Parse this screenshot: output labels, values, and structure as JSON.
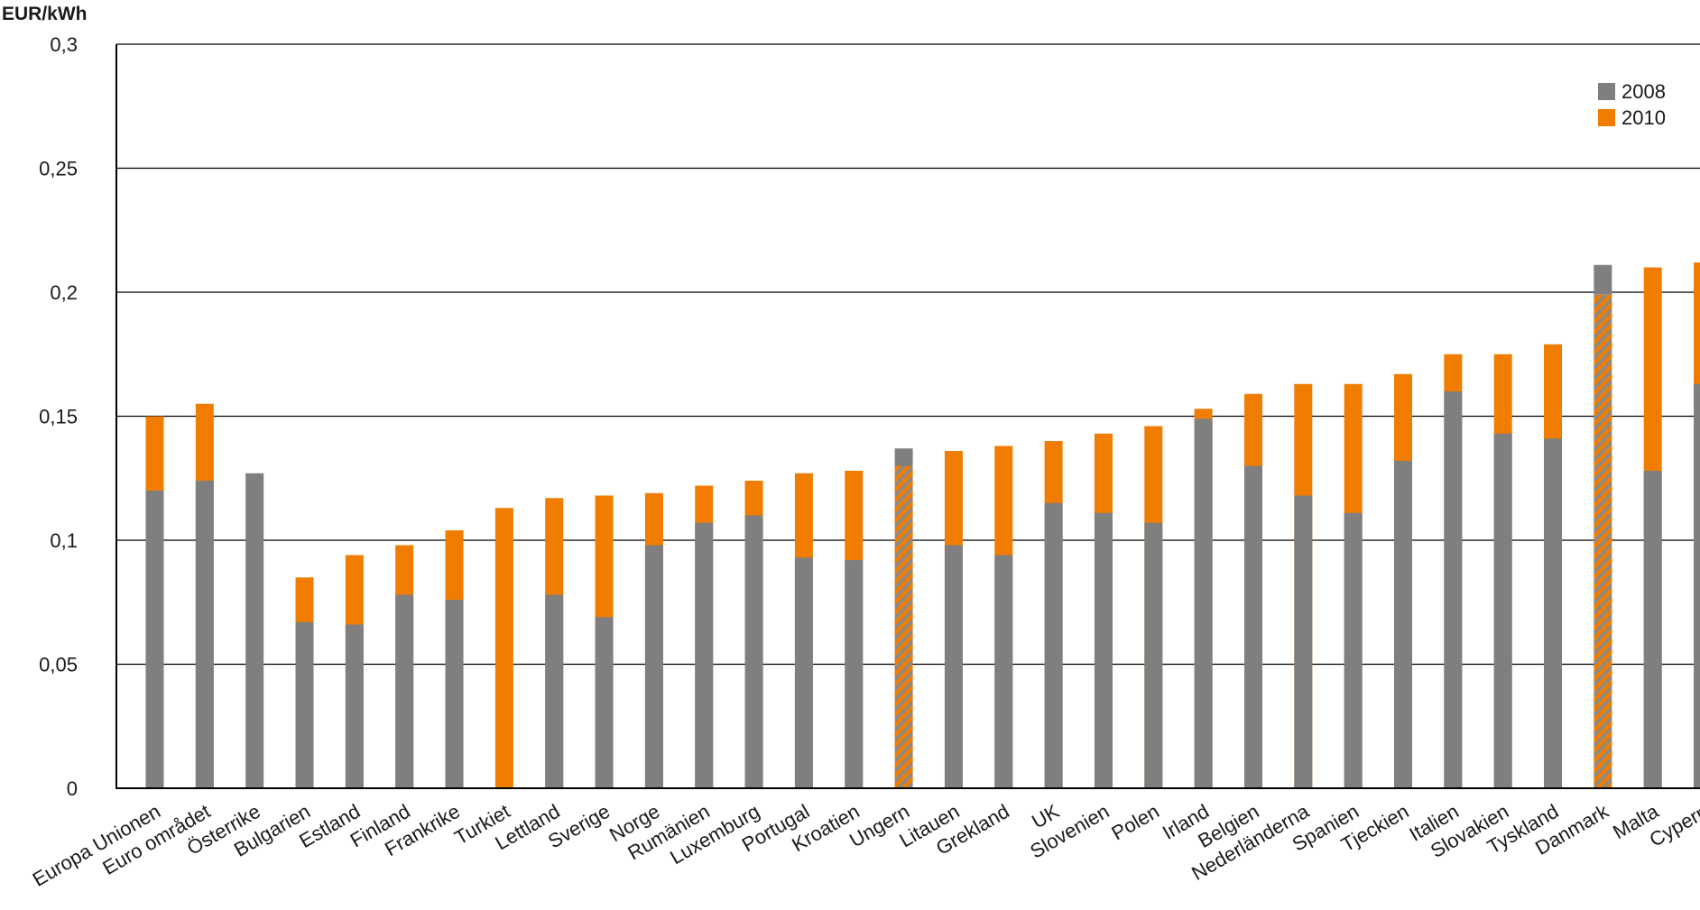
{
  "chart_data": {
    "type": "bar",
    "ylabel": "EUR/kWh",
    "ylim": [
      0,
      0.3
    ],
    "yticks": [
      {
        "value": 0,
        "label": "0"
      },
      {
        "value": 0.05,
        "label": "0,05"
      },
      {
        "value": 0.1,
        "label": "0,1"
      },
      {
        "value": 0.15,
        "label": "0,15"
      },
      {
        "value": 0.2,
        "label": "0,2"
      },
      {
        "value": 0.25,
        "label": "0,25"
      },
      {
        "value": 0.3,
        "label": "0,3"
      }
    ],
    "grid": true,
    "legend": "top-right",
    "categories": [
      "Europa Unionen",
      "Euro området",
      "Österrike",
      "Bulgarien",
      "Estland",
      "Finland",
      "Frankrike",
      "Turkiet",
      "Lettland",
      "Sverige",
      "Norge",
      "Rumänien",
      "Luxemburg",
      "Portugal",
      "Kroatien",
      "Ungern",
      "Litauen",
      "Grekland",
      "UK",
      "Slovenien",
      "Polen",
      "Irland",
      "Belgien",
      "Nederländerna",
      "Spanien",
      "Tjeckien",
      "Italien",
      "Slovakien",
      "Tyskland",
      "Danmark",
      "Malta",
      "Cypern"
    ],
    "series": [
      {
        "name": "2008",
        "color": "#7f7f7f",
        "values": [
          0.12,
          0.124,
          0.127,
          0.067,
          0.066,
          0.078,
          0.076,
          null,
          0.078,
          0.069,
          0.098,
          0.107,
          0.11,
          0.093,
          0.092,
          0.137,
          0.098,
          0.094,
          0.115,
          0.111,
          0.107,
          0.149,
          0.13,
          0.118,
          0.111,
          0.132,
          0.16,
          0.143,
          0.141,
          0.211,
          0.128,
          0.163
        ]
      },
      {
        "name": "2010",
        "color": "#f07d00",
        "values": [
          0.15,
          0.155,
          null,
          0.085,
          0.094,
          0.098,
          0.104,
          0.113,
          0.117,
          0.118,
          0.119,
          0.122,
          0.124,
          0.127,
          0.128,
          0.13,
          0.136,
          0.138,
          0.14,
          0.143,
          0.146,
          0.153,
          0.159,
          0.163,
          0.163,
          0.167,
          0.175,
          0.175,
          0.179,
          0.199,
          0.21,
          0.212
        ]
      }
    ]
  }
}
